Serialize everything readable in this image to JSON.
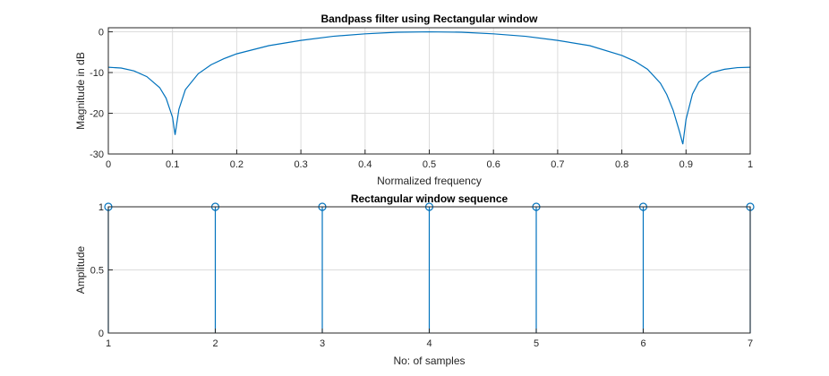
{
  "chart_data": [
    {
      "type": "line",
      "title": "Bandpass filter using Rectangular window",
      "xlabel": "Normalized frequency",
      "ylabel": "Magnitude in dB",
      "xlim": [
        0,
        1
      ],
      "ylim": [
        -30,
        1
      ],
      "grid": true,
      "xticks": [
        0,
        0.1,
        0.2,
        0.3,
        0.4,
        0.5,
        0.6,
        0.7,
        0.8,
        0.9,
        1
      ],
      "xtick_labels": [
        "0",
        "0.1",
        "0.2",
        "0.3",
        "0.4",
        "0.5",
        "0.6",
        "0.7",
        "0.8",
        "0.9",
        "1"
      ],
      "yticks": [
        0,
        -10,
        -20,
        -30
      ],
      "ytick_labels": [
        "0",
        "-10",
        "-20",
        "-30"
      ],
      "series": [
        {
          "color": "#0072bd",
          "x": [
            0,
            0.02,
            0.04,
            0.06,
            0.08,
            0.09,
            0.1,
            0.104,
            0.11,
            0.12,
            0.14,
            0.16,
            0.18,
            0.2,
            0.25,
            0.3,
            0.35,
            0.4,
            0.45,
            0.5,
            0.55,
            0.6,
            0.65,
            0.7,
            0.75,
            0.8,
            0.82,
            0.84,
            0.86,
            0.87,
            0.88,
            0.89,
            0.895,
            0.9,
            0.91,
            0.92,
            0.94,
            0.96,
            0.98,
            1
          ],
          "y": [
            -8.7,
            -8.9,
            -9.6,
            -11.0,
            -13.7,
            -16.3,
            -21.0,
            -25.3,
            -19.0,
            -14.2,
            -10.3,
            -8.1,
            -6.6,
            -5.4,
            -3.4,
            -2.1,
            -1.1,
            -0.5,
            -0.1,
            0.0,
            -0.1,
            -0.5,
            -1.1,
            -2.1,
            -3.4,
            -5.8,
            -7.2,
            -9.2,
            -12.6,
            -15.4,
            -19.3,
            -24.6,
            -27.6,
            -21.5,
            -15.3,
            -12.3,
            -10.0,
            -9.2,
            -8.8,
            -8.7
          ]
        }
      ]
    },
    {
      "type": "stem",
      "title": "Rectangular window  sequence",
      "xlabel": "No: of samples",
      "ylabel": "Amplitude",
      "xlim": [
        1,
        7
      ],
      "ylim": [
        0,
        1
      ],
      "grid": true,
      "xticks": [
        1,
        2,
        3,
        4,
        5,
        6,
        7
      ],
      "xtick_labels": [
        "1",
        "2",
        "3",
        "4",
        "5",
        "6",
        "7"
      ],
      "yticks": [
        0,
        0.5,
        1
      ],
      "ytick_labels": [
        "0",
        "0.5",
        "1"
      ],
      "series": [
        {
          "color": "#0072bd",
          "x": [
            1,
            2,
            3,
            4,
            5,
            6,
            7
          ],
          "y": [
            1,
            1,
            1,
            1,
            1,
            1,
            1
          ]
        }
      ]
    }
  ]
}
